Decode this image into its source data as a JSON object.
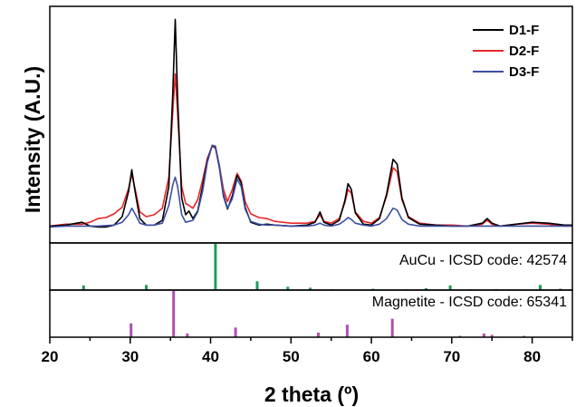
{
  "chart_data": {
    "type": "line",
    "xlabel": "2 theta (º)",
    "ylabel": "Intensity (A.U.)",
    "xlim": [
      20,
      85
    ],
    "x_ticks": [
      20,
      30,
      40,
      50,
      60,
      70,
      80
    ],
    "grid": false,
    "legend_position": "top-right",
    "series": [
      {
        "name": "D1-F",
        "color": "#000000",
        "points": [
          [
            20,
            18
          ],
          [
            22,
            19
          ],
          [
            24,
            22
          ],
          [
            25,
            18
          ],
          [
            26,
            17
          ],
          [
            27,
            17
          ],
          [
            28,
            19
          ],
          [
            29,
            28
          ],
          [
            29.8,
            55
          ],
          [
            30.2,
            78
          ],
          [
            30.6,
            55
          ],
          [
            31.2,
            26
          ],
          [
            32,
            19
          ],
          [
            33,
            19
          ],
          [
            34,
            24
          ],
          [
            34.8,
            60
          ],
          [
            35.3,
            160
          ],
          [
            35.6,
            238
          ],
          [
            35.9,
            155
          ],
          [
            36.4,
            48
          ],
          [
            36.9,
            30
          ],
          [
            37.3,
            34
          ],
          [
            37.8,
            26
          ],
          [
            38.4,
            34
          ],
          [
            39,
            60
          ],
          [
            39.6,
            88
          ],
          [
            40.2,
            104
          ],
          [
            40.6,
            102
          ],
          [
            41.1,
            80
          ],
          [
            41.6,
            50
          ],
          [
            42.1,
            36
          ],
          [
            42.7,
            50
          ],
          [
            43.3,
            72
          ],
          [
            43.8,
            64
          ],
          [
            44.3,
            38
          ],
          [
            45,
            22
          ],
          [
            46,
            19
          ],
          [
            47,
            20
          ],
          [
            48,
            19
          ],
          [
            50,
            18
          ],
          [
            52,
            19
          ],
          [
            53,
            22
          ],
          [
            53.6,
            33
          ],
          [
            54.1,
            22
          ],
          [
            55,
            19
          ],
          [
            56,
            24
          ],
          [
            56.7,
            45
          ],
          [
            57.1,
            63
          ],
          [
            57.5,
            57
          ],
          [
            58,
            32
          ],
          [
            59,
            20
          ],
          [
            60,
            19
          ],
          [
            61,
            26
          ],
          [
            61.9,
            52
          ],
          [
            62.7,
            89
          ],
          [
            63.2,
            84
          ],
          [
            63.8,
            48
          ],
          [
            64.6,
            27
          ],
          [
            66,
            20
          ],
          [
            68,
            19
          ],
          [
            70,
            18
          ],
          [
            72,
            18
          ],
          [
            73.8,
            21
          ],
          [
            74.4,
            26
          ],
          [
            75,
            21
          ],
          [
            76,
            18
          ],
          [
            78,
            20
          ],
          [
            80,
            22
          ],
          [
            82,
            21
          ],
          [
            84,
            19
          ],
          [
            85,
            19
          ]
        ]
      },
      {
        "name": "D2-F",
        "color": "#e8262a",
        "points": [
          [
            20,
            18
          ],
          [
            22,
            20
          ],
          [
            24,
            20
          ],
          [
            25,
            22
          ],
          [
            26,
            26
          ],
          [
            27,
            27
          ],
          [
            28,
            31
          ],
          [
            29,
            38
          ],
          [
            29.8,
            58
          ],
          [
            30.2,
            73
          ],
          [
            30.6,
            58
          ],
          [
            31.2,
            33
          ],
          [
            32,
            28
          ],
          [
            33,
            30
          ],
          [
            34,
            37
          ],
          [
            34.8,
            70
          ],
          [
            35.3,
            140
          ],
          [
            35.6,
            180
          ],
          [
            35.9,
            138
          ],
          [
            36.4,
            60
          ],
          [
            36.9,
            42
          ],
          [
            37.3,
            40
          ],
          [
            37.8,
            37
          ],
          [
            38.4,
            46
          ],
          [
            39,
            67
          ],
          [
            39.6,
            90
          ],
          [
            40.2,
            103
          ],
          [
            40.6,
            101
          ],
          [
            41.1,
            82
          ],
          [
            41.6,
            57
          ],
          [
            42.1,
            44
          ],
          [
            42.7,
            57
          ],
          [
            43.3,
            74
          ],
          [
            43.8,
            66
          ],
          [
            44.3,
            44
          ],
          [
            45,
            31
          ],
          [
            46,
            27
          ],
          [
            47,
            26
          ],
          [
            48,
            23
          ],
          [
            50,
            21
          ],
          [
            52,
            21
          ],
          [
            53,
            23
          ],
          [
            53.6,
            30
          ],
          [
            54.1,
            23
          ],
          [
            55,
            21
          ],
          [
            56,
            26
          ],
          [
            56.7,
            43
          ],
          [
            57.1,
            57
          ],
          [
            57.5,
            53
          ],
          [
            58,
            33
          ],
          [
            59,
            23
          ],
          [
            60,
            21
          ],
          [
            61,
            27
          ],
          [
            61.9,
            50
          ],
          [
            62.7,
            80
          ],
          [
            63.2,
            76
          ],
          [
            63.8,
            46
          ],
          [
            64.6,
            28
          ],
          [
            66,
            21
          ],
          [
            68,
            19
          ],
          [
            70,
            19
          ],
          [
            72,
            18
          ],
          [
            73.8,
            20
          ],
          [
            74.4,
            24
          ],
          [
            75,
            20
          ],
          [
            76,
            18
          ],
          [
            78,
            20
          ],
          [
            80,
            21
          ],
          [
            82,
            20
          ],
          [
            84,
            18
          ],
          [
            85,
            18
          ]
        ]
      },
      {
        "name": "D3-F",
        "color": "#3d4fa4",
        "points": [
          [
            20,
            17
          ],
          [
            22,
            18
          ],
          [
            24,
            18
          ],
          [
            26,
            18
          ],
          [
            28,
            19
          ],
          [
            29,
            22
          ],
          [
            29.8,
            30
          ],
          [
            30.2,
            37
          ],
          [
            30.6,
            31
          ],
          [
            31.2,
            21
          ],
          [
            32,
            19
          ],
          [
            33,
            19
          ],
          [
            34,
            21
          ],
          [
            34.8,
            40
          ],
          [
            35.3,
            62
          ],
          [
            35.6,
            70
          ],
          [
            35.9,
            60
          ],
          [
            36.4,
            30
          ],
          [
            36.9,
            22
          ],
          [
            37.3,
            23
          ],
          [
            37.8,
            24
          ],
          [
            38.4,
            33
          ],
          [
            39,
            55
          ],
          [
            39.6,
            86
          ],
          [
            40.2,
            104
          ],
          [
            40.6,
            103
          ],
          [
            41.1,
            82
          ],
          [
            41.6,
            52
          ],
          [
            42.1,
            37
          ],
          [
            42.7,
            47
          ],
          [
            43.3,
            68
          ],
          [
            43.8,
            60
          ],
          [
            44.3,
            36
          ],
          [
            45,
            23
          ],
          [
            46,
            20
          ],
          [
            47,
            19
          ],
          [
            48,
            19
          ],
          [
            50,
            18
          ],
          [
            52,
            18
          ],
          [
            53,
            19
          ],
          [
            53.6,
            21
          ],
          [
            54.1,
            19
          ],
          [
            55,
            18
          ],
          [
            56,
            20
          ],
          [
            56.7,
            24
          ],
          [
            57.1,
            27
          ],
          [
            57.5,
            25
          ],
          [
            58,
            21
          ],
          [
            59,
            19
          ],
          [
            60,
            18
          ],
          [
            61,
            20
          ],
          [
            61.9,
            26
          ],
          [
            62.7,
            37
          ],
          [
            63.2,
            35
          ],
          [
            63.8,
            25
          ],
          [
            64.6,
            20
          ],
          [
            66,
            18
          ],
          [
            68,
            18
          ],
          [
            70,
            18
          ],
          [
            72,
            18
          ],
          [
            74,
            18
          ],
          [
            76,
            18
          ],
          [
            78,
            18
          ],
          [
            80,
            18
          ],
          [
            82,
            18
          ],
          [
            84,
            18
          ],
          [
            85,
            18
          ]
        ]
      }
    ],
    "reference_panels": [
      {
        "label": "AuCu - ICSD code: 42574",
        "color": "#1f9a5a",
        "sticks": [
          [
            24.2,
            10
          ],
          [
            32,
            11
          ],
          [
            40.6,
            100
          ],
          [
            45.8,
            19
          ],
          [
            49.6,
            7
          ],
          [
            52.4,
            5
          ],
          [
            55.2,
            2
          ],
          [
            60.2,
            3
          ],
          [
            64.3,
            2
          ],
          [
            66.8,
            4
          ],
          [
            69.8,
            10
          ],
          [
            72.3,
            2
          ],
          [
            75.5,
            2
          ],
          [
            81,
            11
          ],
          [
            83.5,
            3
          ]
        ]
      },
      {
        "label": "Magnetite - ICSD code: 65341",
        "color": "#b14fb0",
        "sticks": [
          [
            30.1,
            30
          ],
          [
            35.4,
            100
          ],
          [
            37.1,
            8
          ],
          [
            43.1,
            21
          ],
          [
            53.4,
            10
          ],
          [
            57,
            27
          ],
          [
            62.6,
            40
          ],
          [
            71,
            3
          ],
          [
            74,
            8
          ],
          [
            75,
            5
          ],
          [
            79,
            3
          ]
        ]
      }
    ]
  }
}
